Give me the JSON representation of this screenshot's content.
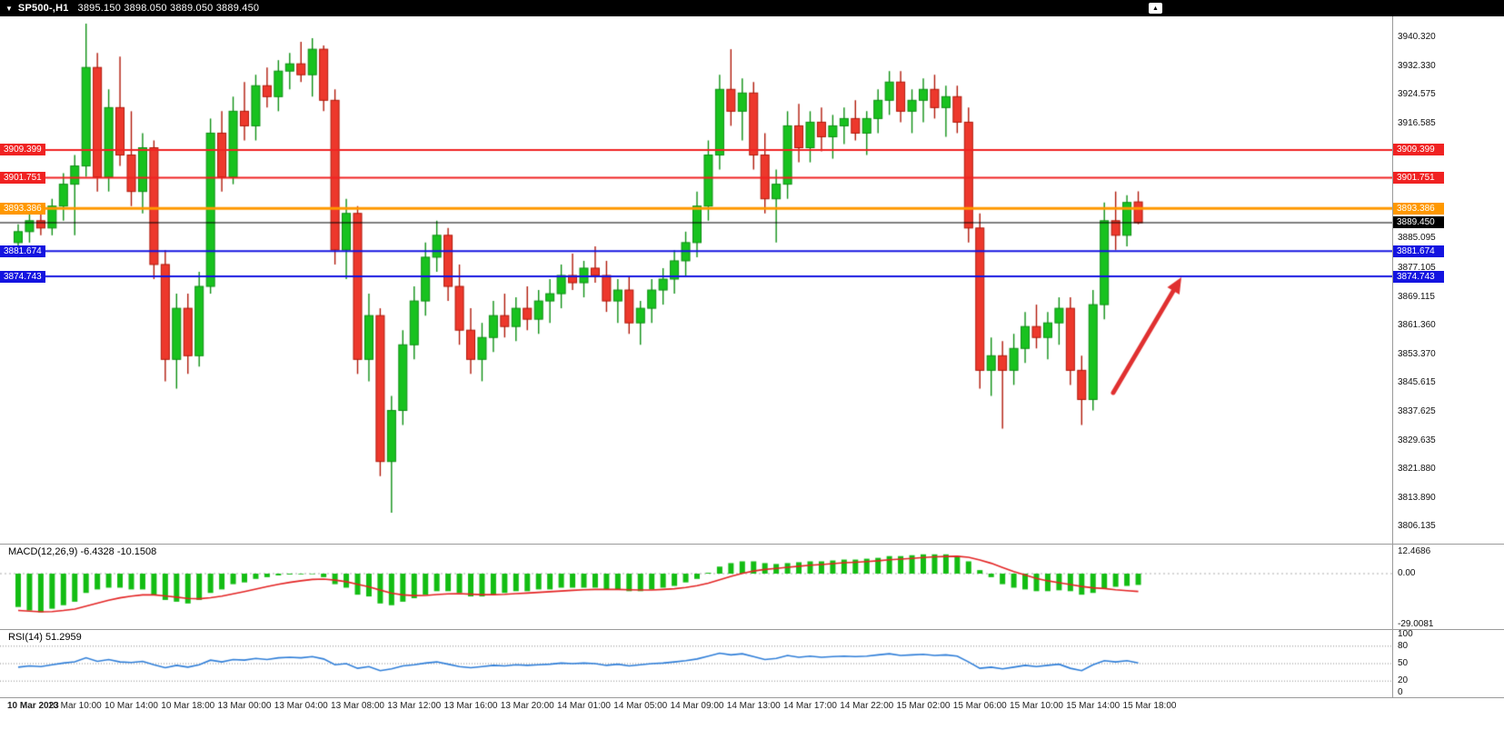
{
  "topbar": {
    "collapse_icon": "▼",
    "symbol_period": "SP500-,H1",
    "ohlc": "3895.150 3898.050 3889.050 3889.450",
    "corner_icon": "▲"
  },
  "chart_data": {
    "type": "candlestick",
    "symbol": "SP500-",
    "timeframe": "H1",
    "last_ohlc": {
      "open": 3895.15,
      "high": 3898.05,
      "low": 3889.05,
      "close": 3889.45
    },
    "style": {
      "bull": "#18c21f",
      "bull_border": "#0d8f13",
      "bear": "#ed382c",
      "bear_border": "#b01708",
      "background": "#ffffff",
      "topbar_bg": "#000000"
    },
    "price_axis": {
      "min": 3802,
      "max": 3946,
      "ticks": [
        {
          "label": "3940.320",
          "value": 3940.32
        },
        {
          "label": "3932.330",
          "value": 3932.33
        },
        {
          "label": "3924.575",
          "value": 3924.575
        },
        {
          "label": "3916.585",
          "value": 3916.585
        },
        {
          "label": "3885.095",
          "value": 3885.095
        },
        {
          "label": "3877.105",
          "value": 3877.105
        },
        {
          "label": "3869.115",
          "value": 3869.115
        },
        {
          "label": "3861.360",
          "value": 3861.36
        },
        {
          "label": "3853.370",
          "value": 3853.37
        },
        {
          "label": "3845.615",
          "value": 3845.615
        },
        {
          "label": "3837.625",
          "value": 3837.625
        },
        {
          "label": "3829.635",
          "value": 3829.635
        },
        {
          "label": "3821.880",
          "value": 3821.88
        },
        {
          "label": "3813.890",
          "value": 3813.89
        },
        {
          "label": "3806.135",
          "value": 3806.135
        }
      ]
    },
    "levels": [
      {
        "price": 3909.399,
        "label": "3909.399",
        "color": "#f02222",
        "width": 2
      },
      {
        "price": 3901.751,
        "label": "3901.751",
        "color": "#f02222",
        "width": 2
      },
      {
        "price": 3893.386,
        "label": "3893.386",
        "color": "#ff9800",
        "width": 3
      },
      {
        "price": 3881.674,
        "label": "3881.674",
        "color": "#1414e0",
        "width": 2
      },
      {
        "price": 3874.743,
        "label": "3874.743",
        "color": "#1414e0",
        "width": 2
      }
    ],
    "current_price": {
      "value": 3889.45,
      "label": "3889.450",
      "color": "#000000"
    },
    "annotation_arrow": {
      "from": [
        1225,
        414
      ],
      "to": [
        1300,
        287
      ],
      "color": "#e03030"
    },
    "x_labels": [
      "10 Mar 2023",
      "10 Mar 10:00",
      "10 Mar 14:00",
      "10 Mar 18:00",
      "13 Mar 00:00",
      "13 Mar 04:00",
      "13 Mar 08:00",
      "13 Mar 12:00",
      "13 Mar 16:00",
      "13 Mar 20:00",
      "14 Mar 01:00",
      "14 Mar 05:00",
      "14 Mar 09:00",
      "14 Mar 13:00",
      "14 Mar 17:00",
      "14 Mar 22:00",
      "15 Mar 02:00",
      "15 Mar 06:00",
      "15 Mar 10:00",
      "15 Mar 14:00",
      "15 Mar 18:00"
    ],
    "candles_per_label": 5,
    "candles": [
      [
        3884,
        3889,
        3880,
        3887
      ],
      [
        3887,
        3892,
        3884,
        3890
      ],
      [
        3890,
        3893,
        3886,
        3888
      ],
      [
        3888,
        3896,
        3886,
        3894
      ],
      [
        3894,
        3903,
        3890,
        3900
      ],
      [
        3900,
        3908,
        3886,
        3905
      ],
      [
        3905,
        3944,
        3902,
        3932
      ],
      [
        3932,
        3936,
        3898,
        3902
      ],
      [
        3902,
        3926,
        3898,
        3921
      ],
      [
        3921,
        3935,
        3905,
        3908
      ],
      [
        3908,
        3920,
        3894,
        3898
      ],
      [
        3898,
        3914,
        3892,
        3910
      ],
      [
        3910,
        3912,
        3874,
        3878
      ],
      [
        3878,
        3882,
        3846,
        3852
      ],
      [
        3852,
        3870,
        3844,
        3866
      ],
      [
        3866,
        3870,
        3848,
        3853
      ],
      [
        3853,
        3876,
        3850,
        3872
      ],
      [
        3872,
        3918,
        3870,
        3914
      ],
      [
        3914,
        3920,
        3898,
        3902
      ],
      [
        3902,
        3924,
        3900,
        3920
      ],
      [
        3920,
        3928,
        3912,
        3916
      ],
      [
        3916,
        3930,
        3912,
        3927
      ],
      [
        3927,
        3932,
        3921,
        3924
      ],
      [
        3924,
        3934,
        3920,
        3931
      ],
      [
        3931,
        3936,
        3926,
        3933
      ],
      [
        3933,
        3939,
        3928,
        3930
      ],
      [
        3930,
        3940,
        3924,
        3937
      ],
      [
        3937,
        3938,
        3920,
        3923
      ],
      [
        3923,
        3926,
        3878,
        3882
      ],
      [
        3882,
        3896,
        3874,
        3892
      ],
      [
        3892,
        3894,
        3848,
        3852
      ],
      [
        3852,
        3870,
        3846,
        3864
      ],
      [
        3864,
        3866,
        3820,
        3824
      ],
      [
        3824,
        3842,
        3810,
        3838
      ],
      [
        3838,
        3860,
        3834,
        3856
      ],
      [
        3856,
        3872,
        3852,
        3868
      ],
      [
        3868,
        3884,
        3864,
        3880
      ],
      [
        3880,
        3890,
        3876,
        3886
      ],
      [
        3886,
        3888,
        3868,
        3872
      ],
      [
        3872,
        3878,
        3856,
        3860
      ],
      [
        3860,
        3866,
        3848,
        3852
      ],
      [
        3852,
        3862,
        3846,
        3858
      ],
      [
        3858,
        3868,
        3854,
        3864
      ],
      [
        3864,
        3870,
        3858,
        3861
      ],
      [
        3861,
        3869,
        3857,
        3866
      ],
      [
        3866,
        3872,
        3860,
        3863
      ],
      [
        3863,
        3871,
        3859,
        3868
      ],
      [
        3868,
        3874,
        3862,
        3870
      ],
      [
        3870,
        3878,
        3866,
        3875
      ],
      [
        3875,
        3881,
        3871,
        3873
      ],
      [
        3873,
        3879,
        3869,
        3877
      ],
      [
        3877,
        3883,
        3873,
        3875
      ],
      [
        3875,
        3879,
        3865,
        3868
      ],
      [
        3868,
        3874,
        3862,
        3871
      ],
      [
        3871,
        3875,
        3859,
        3862
      ],
      [
        3862,
        3868,
        3856,
        3866
      ],
      [
        3866,
        3874,
        3862,
        3871
      ],
      [
        3871,
        3877,
        3867,
        3874
      ],
      [
        3874,
        3882,
        3870,
        3879
      ],
      [
        3879,
        3887,
        3875,
        3884
      ],
      [
        3884,
        3898,
        3880,
        3894
      ],
      [
        3894,
        3912,
        3890,
        3908
      ],
      [
        3908,
        3930,
        3904,
        3926
      ],
      [
        3926,
        3937,
        3916,
        3920
      ],
      [
        3920,
        3929,
        3912,
        3925
      ],
      [
        3925,
        3928,
        3904,
        3908
      ],
      [
        3908,
        3914,
        3892,
        3896
      ],
      [
        3896,
        3904,
        3884,
        3900
      ],
      [
        3900,
        3920,
        3896,
        3916
      ],
      [
        3916,
        3922,
        3906,
        3910
      ],
      [
        3910,
        3920,
        3906,
        3917
      ],
      [
        3917,
        3921,
        3909,
        3913
      ],
      [
        3913,
        3919,
        3907,
        3916
      ],
      [
        3916,
        3921,
        3911,
        3918
      ],
      [
        3918,
        3923,
        3912,
        3914
      ],
      [
        3914,
        3920,
        3908,
        3918
      ],
      [
        3918,
        3926,
        3914,
        3923
      ],
      [
        3923,
        3931,
        3919,
        3928
      ],
      [
        3928,
        3931,
        3917,
        3920
      ],
      [
        3920,
        3926,
        3914,
        3923
      ],
      [
        3923,
        3929,
        3917,
        3926
      ],
      [
        3926,
        3930,
        3918,
        3921
      ],
      [
        3921,
        3927,
        3913,
        3924
      ],
      [
        3924,
        3927,
        3914,
        3917
      ],
      [
        3917,
        3921,
        3884,
        3888
      ],
      [
        3888,
        3892,
        3844,
        3849
      ],
      [
        3849,
        3858,
        3842,
        3853
      ],
      [
        3853,
        3857,
        3833,
        3849
      ],
      [
        3849,
        3859,
        3845,
        3855
      ],
      [
        3855,
        3865,
        3851,
        3861
      ],
      [
        3861,
        3867,
        3855,
        3858
      ],
      [
        3858,
        3865,
        3852,
        3862
      ],
      [
        3862,
        3869,
        3856,
        3866
      ],
      [
        3866,
        3869,
        3845,
        3849
      ],
      [
        3849,
        3853,
        3834,
        3841
      ],
      [
        3841,
        3871,
        3838,
        3867
      ],
      [
        3867,
        3895,
        3863,
        3890
      ],
      [
        3890,
        3898,
        3882,
        3886
      ],
      [
        3886,
        3897,
        3883,
        3895
      ],
      [
        3895.15,
        3898.05,
        3889.05,
        3889.45
      ]
    ],
    "macd": {
      "label": "MACD(12,26,9) -6.4328 -10.1508",
      "main_value": -6.4328,
      "signal_value": -10.1508,
      "hist_color": "#13bd13",
      "signal_color": "#e32424",
      "axis": [
        {
          "label": "12.4686",
          "value": 12.4686
        },
        {
          "label": "0.00",
          "value": 0
        },
        {
          "label": "-29.0081",
          "value": -29.0081
        }
      ],
      "histogram": [
        -19,
        -21,
        -22,
        -20,
        -18,
        -16,
        -11,
        -9,
        -8,
        -8,
        -9,
        -9,
        -12,
        -15,
        -16,
        -17,
        -15,
        -11,
        -9,
        -6,
        -5,
        -3,
        -2,
        -1,
        -0.5,
        -0.4,
        -0.3,
        -2,
        -6,
        -8,
        -12,
        -13,
        -17,
        -18,
        -16,
        -14,
        -12,
        -10,
        -10,
        -11,
        -13,
        -13,
        -12,
        -11,
        -10,
        -10,
        -9,
        -9,
        -8,
        -8,
        -8,
        -8,
        -9,
        -9,
        -10,
        -10,
        -9,
        -8,
        -7,
        -5,
        -3,
        0.5,
        4,
        6,
        7,
        7,
        6,
        5.5,
        6,
        6.5,
        7,
        7,
        7.5,
        8,
        8,
        8.5,
        9,
        10,
        10,
        10.5,
        11,
        11,
        11,
        10,
        7,
        2,
        -2,
        -6,
        -8,
        -9,
        -10,
        -10,
        -9.5,
        -10,
        -12,
        -11,
        -8.5,
        -7.5,
        -7,
        -6.43
      ],
      "signal": [
        -21,
        -21.4,
        -21.8,
        -21.6,
        -21,
        -20.2,
        -18.5,
        -16.8,
        -15.2,
        -13.8,
        -12.8,
        -12.1,
        -12.1,
        -12.7,
        -13.4,
        -14.1,
        -14.3,
        -13.7,
        -12.8,
        -11.5,
        -10.2,
        -8.8,
        -7.4,
        -6.1,
        -5,
        -4.1,
        -3.3,
        -3.1,
        -3.7,
        -4.6,
        -6.1,
        -7.5,
        -9.4,
        -11.1,
        -12.1,
        -12.5,
        -12.4,
        -11.9,
        -11.5,
        -11.4,
        -11.7,
        -12,
        -12,
        -11.8,
        -11.4,
        -11.1,
        -10.7,
        -10.3,
        -9.9,
        -9.5,
        -9.2,
        -9,
        -9,
        -9,
        -9.2,
        -9.3,
        -9.3,
        -9,
        -8.6,
        -7.9,
        -6.9,
        -5.4,
        -3.5,
        -1.6,
        0.1,
        1.5,
        2.4,
        3,
        3.6,
        4.2,
        4.8,
        5.2,
        5.7,
        6.2,
        6.5,
        6.9,
        7.3,
        7.9,
        8.3,
        8.7,
        9.2,
        9.6,
        9.8,
        9.9,
        9.3,
        7.8,
        5.9,
        3.5,
        1.2,
        -0.8,
        -2.7,
        -4.1,
        -5.2,
        -6.2,
        -7.3,
        -8.1,
        -8.5,
        -9.2,
        -9.7,
        -10.15
      ]
    },
    "rsi": {
      "label": "RSI(14) 51.2959",
      "current_value": 51.2959,
      "line_color": "#2f7ed8",
      "axis": [
        {
          "label": "100",
          "value": 100
        },
        {
          "label": "80",
          "value": 80
        },
        {
          "label": "50",
          "value": 50
        },
        {
          "label": "20",
          "value": 20
        },
        {
          "label": "0",
          "value": 0
        }
      ],
      "level_lines": [
        80,
        50,
        20
      ],
      "values": [
        44,
        46,
        45,
        48,
        51,
        53,
        60,
        54,
        57,
        53,
        52,
        54,
        48,
        43,
        47,
        44,
        48,
        56,
        53,
        57,
        56,
        59,
        57,
        60,
        61,
        60,
        62,
        58,
        48,
        50,
        42,
        45,
        38,
        41,
        46,
        48,
        51,
        53,
        49,
        45,
        43,
        45,
        47,
        46,
        48,
        47,
        48,
        49,
        51,
        50,
        51,
        50,
        47,
        49,
        46,
        48,
        50,
        51,
        53,
        55,
        58,
        63,
        68,
        65,
        67,
        62,
        57,
        59,
        64,
        61,
        63,
        61,
        62,
        63,
        62,
        63,
        65,
        67,
        64,
        65,
        66,
        64,
        65,
        63,
        53,
        42,
        44,
        41,
        44,
        47,
        45,
        47,
        49,
        42,
        38,
        48,
        55,
        53,
        55,
        51.3
      ]
    }
  }
}
